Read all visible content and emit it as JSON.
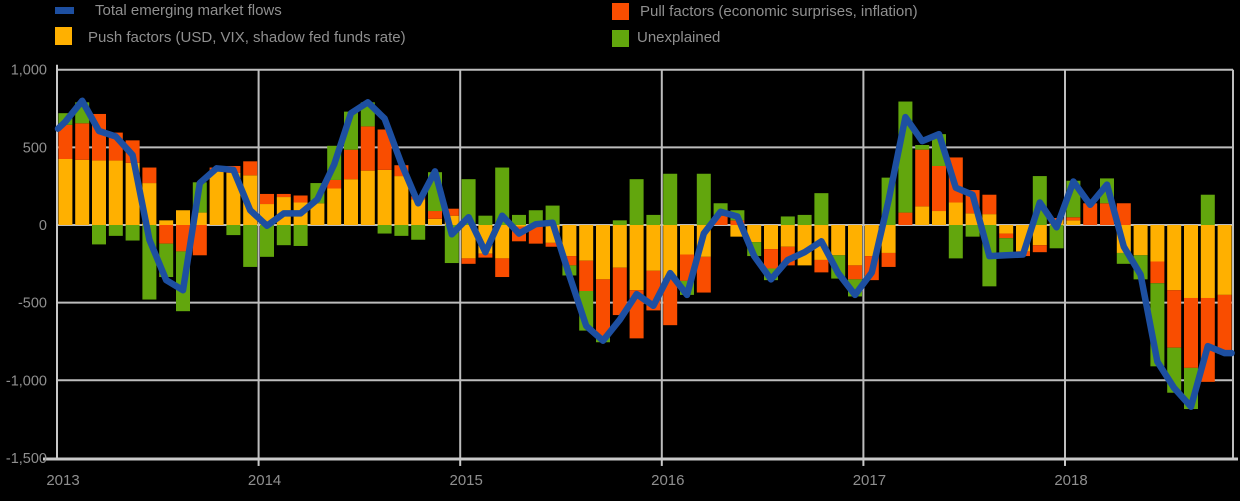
{
  "legend": {
    "total": {
      "label": "Total emerging market flows",
      "color": "#1d4fa1"
    },
    "push": {
      "label": "Push factors (USD, VIX, shadow fed funds rate)",
      "color": "#ffb000"
    },
    "pull": {
      "label": "Pull factors (economic surprises, inflation)",
      "color": "#f94d00"
    },
    "unexplained": {
      "label": "Unexplained",
      "color": "#62a60d"
    }
  },
  "colors": {
    "background": "#000000",
    "gridline": "#bdbdbd",
    "axis": "#c9c9c9",
    "text": "#8f8f8f",
    "bar_push": "#ffb000",
    "bar_pull": "#f94d00",
    "bar_unexplained": "#62a60d",
    "line_total": "#1d4fa1"
  },
  "chart_data": {
    "type": "bar",
    "subtype": "stacked-bars-with-line-overlay",
    "legend_position": "top",
    "grid": true,
    "ylim": [
      -1500,
      1000
    ],
    "y_ticks": [
      1000,
      500,
      0,
      -500,
      -1000,
      -1500
    ],
    "y_tick_labels": [
      "1,000",
      "500",
      "0",
      "-500",
      "-1,000",
      "-1,500"
    ],
    "x_tick_labels": [
      "2013",
      "2014",
      "2015",
      "2016",
      "2017",
      "2018"
    ],
    "x": [
      "2013-01",
      "2013-02",
      "2013-03",
      "2013-04",
      "2013-05",
      "2013-06",
      "2013-07",
      "2013-08",
      "2013-09",
      "2013-10",
      "2013-11",
      "2013-12",
      "2014-01",
      "2014-02",
      "2014-03",
      "2014-04",
      "2014-05",
      "2014-06",
      "2014-07",
      "2014-08",
      "2014-09",
      "2014-10",
      "2014-11",
      "2014-12",
      "2015-01",
      "2015-02",
      "2015-03",
      "2015-04",
      "2015-05",
      "2015-06",
      "2015-07",
      "2015-08",
      "2015-09",
      "2015-10",
      "2015-11",
      "2015-12",
      "2016-01",
      "2016-02",
      "2016-03",
      "2016-04",
      "2016-05",
      "2016-06",
      "2016-07",
      "2016-08",
      "2016-09",
      "2016-10",
      "2016-11",
      "2016-12",
      "2017-01",
      "2017-02",
      "2017-03",
      "2017-04",
      "2017-05",
      "2017-06",
      "2017-07",
      "2017-08",
      "2017-09",
      "2017-10",
      "2017-11",
      "2017-12",
      "2018-01",
      "2018-02",
      "2018-03",
      "2018-04",
      "2018-05",
      "2018-06",
      "2018-07",
      "2018-08",
      "2018-09",
      "2018-10"
    ],
    "series": [
      {
        "name": "Push factors (USD, VIX, shadow fed funds rate)",
        "render": "bar",
        "color": "#ffb000",
        "values": [
          425,
          420,
          415,
          415,
          400,
          270,
          30,
          95,
          80,
          355,
          335,
          320,
          135,
          180,
          145,
          140,
          235,
          295,
          350,
          355,
          315,
          165,
          40,
          60,
          -215,
          -185,
          -215,
          -10,
          -10,
          -115,
          -200,
          -230,
          -350,
          -275,
          -420,
          -295,
          -345,
          -190,
          -205,
          0,
          -75,
          -110,
          -155,
          -140,
          -260,
          -225,
          -195,
          -260,
          -200,
          -180,
          0,
          120,
          90,
          145,
          75,
          70,
          -55,
          -170,
          -130,
          35,
          30,
          0,
          0,
          -180,
          -195,
          -235,
          -420,
          -470,
          -470,
          -450
        ]
      },
      {
        "name": "Pull factors (economic surprises, inflation)",
        "render": "bar",
        "color": "#f94d00",
        "values": [
          220,
          235,
          300,
          180,
          145,
          100,
          -120,
          -170,
          -195,
          15,
          45,
          90,
          65,
          20,
          45,
          0,
          55,
          190,
          285,
          260,
          70,
          20,
          50,
          45,
          -35,
          -25,
          -120,
          -95,
          -110,
          -25,
          -60,
          -195,
          -375,
          -305,
          -310,
          -255,
          -300,
          -170,
          -230,
          60,
          30,
          0,
          -125,
          -120,
          0,
          -80,
          0,
          -90,
          -155,
          -90,
          80,
          365,
          290,
          290,
          150,
          125,
          -30,
          -30,
          -45,
          10,
          20,
          140,
          140,
          140,
          0,
          -140,
          -370,
          -450,
          -540,
          -360
        ]
      },
      {
        "name": "Unexplained",
        "render": "bar",
        "color": "#62a60d",
        "values": [
          75,
          135,
          -125,
          -70,
          -100,
          -480,
          -215,
          -385,
          195,
          0,
          -65,
          -270,
          -205,
          -130,
          -135,
          130,
          220,
          245,
          155,
          -55,
          -70,
          -95,
          250,
          -245,
          295,
          60,
          370,
          65,
          95,
          125,
          -65,
          -255,
          -30,
          30,
          295,
          65,
          330,
          -90,
          330,
          80,
          65,
          -90,
          -75,
          55,
          65,
          205,
          -150,
          -110,
          0,
          305,
          715,
          30,
          205,
          -215,
          -75,
          -395,
          -105,
          0,
          315,
          -150,
          235,
          0,
          160,
          -70,
          -155,
          -535,
          -290,
          -265,
          195,
          -20
        ]
      },
      {
        "name": "Total emerging market flows",
        "render": "line",
        "color": "#1d4fa1",
        "values": [
          665,
          800,
          605,
          570,
          450,
          -95,
          -355,
          -420,
          270,
          365,
          355,
          95,
          -5,
          75,
          75,
          165,
          390,
          720,
          790,
          685,
          395,
          140,
          345,
          -60,
          50,
          -175,
          60,
          -55,
          5,
          15,
          -325,
          -650,
          -745,
          -610,
          -445,
          -520,
          -310,
          -450,
          -55,
          85,
          55,
          -200,
          -350,
          -225,
          -175,
          -105,
          -310,
          -450,
          -305,
          160,
          695,
          540,
          585,
          240,
          195,
          -200,
          -195,
          -190,
          145,
          -15,
          280,
          130,
          260,
          -140,
          -320,
          -880,
          -1050,
          -1170,
          -780,
          -825
        ]
      }
    ]
  }
}
